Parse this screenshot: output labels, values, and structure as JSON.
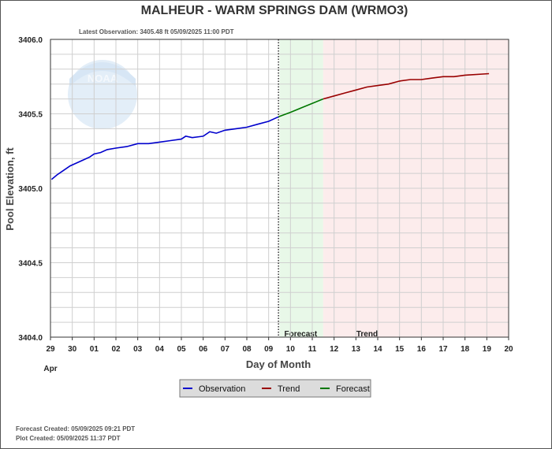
{
  "chart_data": {
    "type": "line",
    "title": "MALHEUR - WARM SPRINGS DAM  (WRMO3)",
    "subtitle": "Latest Observation: 3405.48 ft 05/09/2025 11:00 PDT",
    "xlabel": "Day of Month",
    "ylabel": "Pool Elevation, ft",
    "month_label": "Apr",
    "x_ticks": [
      "29",
      "30",
      "01",
      "02",
      "03",
      "04",
      "05",
      "06",
      "07",
      "08",
      "09",
      "10",
      "11",
      "12",
      "13",
      "14",
      "15",
      "16",
      "17",
      "18",
      "19",
      "20"
    ],
    "y_ticks": [
      "3404.0",
      "3404.5",
      "3405.0",
      "3405.5",
      "3406.0"
    ],
    "ylim": [
      3404.0,
      3406.0
    ],
    "xlim": [
      0,
      21
    ],
    "grid": true,
    "zones": [
      {
        "name": "Forecast",
        "start": 10.5,
        "end": 12.5,
        "color": "#e8f8e8"
      },
      {
        "name": "Trend",
        "start": 12.5,
        "end": 21,
        "color": "#fcecec"
      }
    ],
    "latest_obs_x": 10.45,
    "series": [
      {
        "name": "Observation",
        "color": "#0000cc",
        "points": [
          [
            0.05,
            3405.06
          ],
          [
            0.3,
            3405.09
          ],
          [
            0.6,
            3405.12
          ],
          [
            0.9,
            3405.15
          ],
          [
            1.2,
            3405.17
          ],
          [
            1.5,
            3405.19
          ],
          [
            1.8,
            3405.21
          ],
          [
            2.0,
            3405.23
          ],
          [
            2.3,
            3405.24
          ],
          [
            2.6,
            3405.26
          ],
          [
            3.0,
            3405.27
          ],
          [
            3.5,
            3405.28
          ],
          [
            4.0,
            3405.3
          ],
          [
            4.5,
            3405.3
          ],
          [
            5.0,
            3405.31
          ],
          [
            5.5,
            3405.32
          ],
          [
            6.0,
            3405.33
          ],
          [
            6.2,
            3405.35
          ],
          [
            6.5,
            3405.34
          ],
          [
            7.0,
            3405.35
          ],
          [
            7.3,
            3405.38
          ],
          [
            7.6,
            3405.37
          ],
          [
            8.0,
            3405.39
          ],
          [
            8.5,
            3405.4
          ],
          [
            9.0,
            3405.41
          ],
          [
            9.5,
            3405.43
          ],
          [
            10.0,
            3405.45
          ],
          [
            10.45,
            3405.48
          ]
        ]
      },
      {
        "name": "Forecast",
        "color": "#007700",
        "points": [
          [
            10.45,
            3405.48
          ],
          [
            11.0,
            3405.51
          ],
          [
            11.5,
            3405.54
          ],
          [
            12.0,
            3405.57
          ],
          [
            12.5,
            3405.6
          ]
        ]
      },
      {
        "name": "Trend",
        "color": "#990000",
        "points": [
          [
            12.5,
            3405.6
          ],
          [
            13.0,
            3405.62
          ],
          [
            13.5,
            3405.64
          ],
          [
            14.0,
            3405.66
          ],
          [
            14.5,
            3405.68
          ],
          [
            15.0,
            3405.69
          ],
          [
            15.5,
            3405.7
          ],
          [
            16.0,
            3405.72
          ],
          [
            16.5,
            3405.73
          ],
          [
            17.0,
            3405.73
          ],
          [
            17.5,
            3405.74
          ],
          [
            18.0,
            3405.75
          ],
          [
            18.5,
            3405.75
          ],
          [
            19.0,
            3405.76
          ],
          [
            20.1,
            3405.77
          ]
        ]
      }
    ],
    "legend": [
      "Observation",
      "Trend",
      "Forecast"
    ]
  },
  "footer": {
    "forecast_created": "Forecast Created: 05/09/2025 09:21 PDT",
    "plot_created": "Plot Created: 05/09/2025 11:37 PDT"
  },
  "watermark": "NOAA"
}
